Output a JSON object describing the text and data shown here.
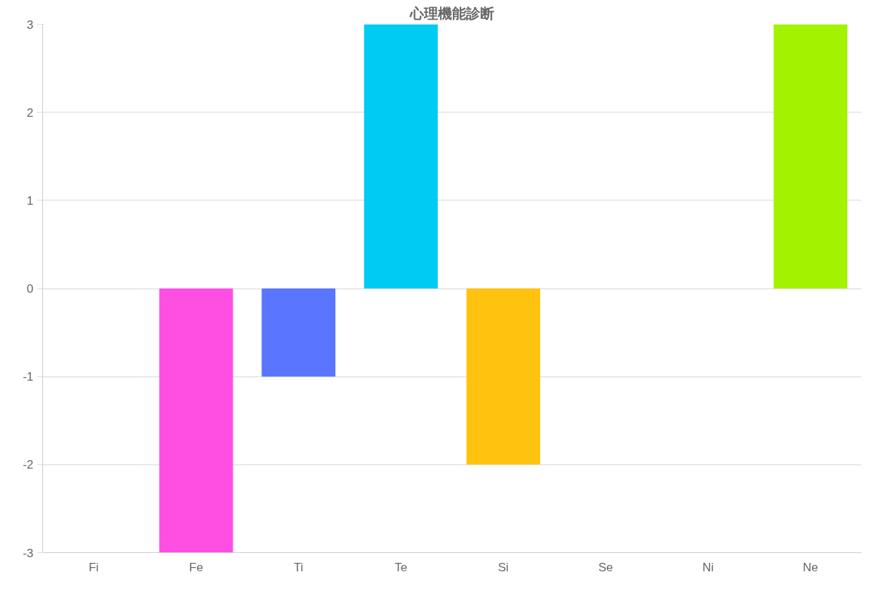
{
  "chart_data": {
    "type": "bar",
    "title": "心理機能診断",
    "categories": [
      "Fi",
      "Fe",
      "Ti",
      "Te",
      "Si",
      "Se",
      "Ni",
      "Ne"
    ],
    "values": [
      0,
      -3,
      -1,
      3,
      -2,
      0,
      0,
      3
    ],
    "colors": [
      "#ff6384",
      "#ff4fe3",
      "#5a75ff",
      "#00cbf2",
      "#ffc30f",
      "#4bc0c0",
      "#9966ff",
      "#a3f200"
    ],
    "ylim": [
      -3,
      3
    ],
    "yticks": [
      -3,
      -2,
      -1,
      0,
      1,
      2,
      3
    ],
    "grid": "y"
  }
}
